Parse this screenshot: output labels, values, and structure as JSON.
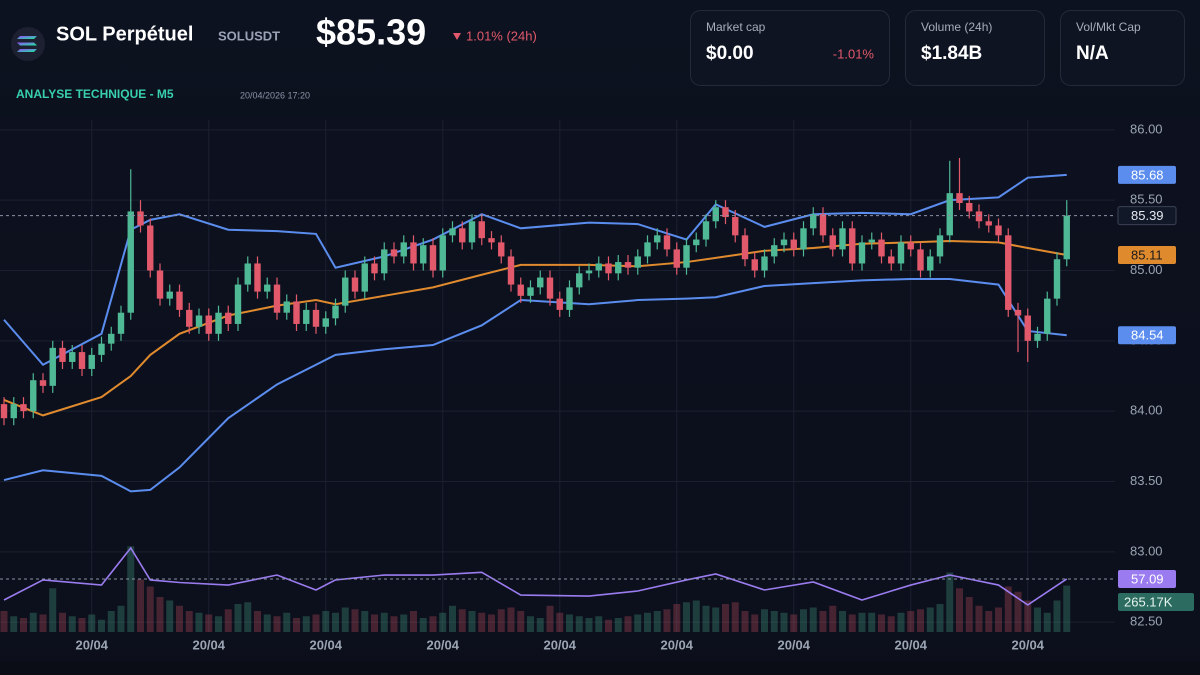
{
  "header": {
    "symbol": "SOL Perpétuel",
    "ticker": "SOLUSDT",
    "price": "$85.39",
    "change": "1.01% (24h)",
    "section": "ANALYSE TECHNIQUE - M5",
    "timestamp": "20/04/2026 17:20"
  },
  "stats": [
    {
      "label": "Market cap",
      "value": "$0.00",
      "change": "-1.01%"
    },
    {
      "label": "Volume (24h)",
      "value": "$1.84B"
    },
    {
      "label": "Vol/Mkt Cap",
      "value": "N/A"
    }
  ],
  "chart_data": {
    "type": "candlestick",
    "up_color": "#4fb894",
    "down_color": "#e2596b",
    "ylim": [
      82.43,
      86.07
    ],
    "yticks": [
      {
        "value": 82.5,
        "label": "82.50"
      },
      {
        "value": 83,
        "label": "83.00"
      },
      {
        "value": 83.5,
        "label": "83.50"
      },
      {
        "value": 84,
        "label": "84.00"
      },
      {
        "value": 84.5,
        "label": "84.50"
      },
      {
        "value": 85,
        "label": "85.00"
      },
      {
        "value": 85.5,
        "label": "85.50"
      },
      {
        "value": 86,
        "label": "86.00"
      }
    ],
    "categories": [
      null,
      null,
      null,
      null,
      null,
      null,
      null,
      null,
      null,
      "20/04",
      null,
      null,
      null,
      null,
      null,
      null,
      null,
      null,
      null,
      null,
      null,
      "20/04",
      null,
      null,
      null,
      null,
      null,
      null,
      null,
      null,
      null,
      null,
      null,
      "20/04",
      null,
      null,
      null,
      null,
      null,
      null,
      null,
      null,
      null,
      null,
      null,
      "20/04",
      null,
      null,
      null,
      null,
      null,
      null,
      null,
      null,
      null,
      null,
      null,
      "20/04",
      null,
      null,
      null,
      null,
      null,
      null,
      null,
      null,
      null,
      null,
      null,
      "20/04",
      null,
      null,
      null,
      null,
      null,
      null,
      null,
      null,
      null,
      null,
      null,
      "20/04",
      null,
      null,
      null,
      null,
      null,
      null,
      null,
      null,
      null,
      null,
      null,
      "20/04",
      null,
      null,
      null,
      null,
      null,
      null,
      null,
      null,
      null,
      null,
      null,
      "20/04",
      null,
      null,
      null,
      null
    ],
    "open": [
      84.05,
      83.95,
      84.05,
      84.0,
      84.22,
      84.18,
      84.45,
      84.35,
      84.42,
      84.3,
      84.4,
      84.48,
      84.55,
      84.7,
      85.42,
      85.32,
      85.0,
      84.8,
      84.85,
      84.72,
      84.6,
      84.68,
      84.55,
      84.7,
      84.62,
      84.9,
      85.05,
      84.85,
      84.9,
      84.7,
      84.78,
      84.62,
      84.72,
      84.6,
      84.66,
      84.75,
      84.95,
      84.85,
      85.05,
      84.98,
      85.15,
      85.1,
      85.2,
      85.05,
      85.18,
      85.0,
      85.25,
      85.3,
      85.2,
      85.35,
      85.23,
      85.2,
      85.1,
      84.9,
      84.82,
      84.88,
      84.95,
      84.8,
      84.72,
      84.88,
      84.98,
      85.0,
      85.05,
      84.98,
      85.06,
      85.02,
      85.1,
      85.2,
      85.25,
      85.15,
      85.02,
      85.18,
      85.22,
      85.35,
      85.45,
      85.38,
      85.25,
      85.08,
      85.0,
      85.1,
      85.18,
      85.22,
      85.15,
      85.3,
      85.4,
      85.25,
      85.15,
      85.3,
      85.05,
      85.2,
      85.22,
      85.1,
      85.05,
      85.2,
      85.15,
      85.0,
      85.1,
      85.25,
      85.55,
      85.48,
      85.42,
      85.35,
      85.32,
      85.25,
      84.72,
      84.68,
      84.5,
      84.55,
      84.8,
      85.08
    ],
    "high": [
      84.1,
      84.1,
      84.1,
      84.27,
      84.27,
      84.5,
      84.5,
      84.47,
      84.47,
      84.45,
      84.53,
      84.6,
      84.75,
      85.72,
      85.5,
      85.37,
      85.05,
      84.9,
      84.9,
      84.77,
      84.73,
      84.73,
      84.75,
      84.75,
      84.95,
      85.1,
      85.1,
      84.95,
      84.95,
      84.83,
      84.83,
      84.77,
      84.77,
      84.71,
      84.8,
      85.0,
      85.0,
      85.1,
      85.1,
      85.2,
      85.2,
      85.25,
      85.25,
      85.23,
      85.23,
      85.3,
      85.35,
      85.35,
      85.4,
      85.4,
      85.28,
      85.25,
      85.15,
      84.95,
      84.93,
      85.0,
      85.0,
      84.85,
      84.93,
      85.03,
      85.05,
      85.1,
      85.1,
      85.11,
      85.11,
      85.15,
      85.25,
      85.3,
      85.3,
      85.2,
      85.23,
      85.27,
      85.4,
      85.5,
      85.5,
      85.43,
      85.3,
      85.13,
      85.15,
      85.23,
      85.27,
      85.27,
      85.35,
      85.45,
      85.45,
      85.3,
      85.35,
      85.35,
      85.25,
      85.27,
      85.27,
      85.15,
      85.25,
      85.25,
      85.2,
      85.15,
      85.3,
      85.78,
      85.8,
      85.53,
      85.47,
      85.4,
      85.37,
      85.3,
      84.77,
      84.73,
      84.6,
      84.85,
      85.13,
      85.5
    ],
    "low": [
      83.9,
      83.9,
      83.95,
      83.95,
      84.13,
      84.13,
      84.3,
      84.3,
      84.25,
      84.25,
      84.35,
      84.43,
      84.5,
      84.65,
      85.27,
      84.95,
      84.75,
      84.75,
      84.67,
      84.55,
      84.55,
      84.5,
      84.5,
      84.57,
      84.57,
      84.85,
      84.8,
      84.8,
      84.65,
      84.65,
      84.57,
      84.57,
      84.55,
      84.55,
      84.61,
      84.7,
      84.8,
      84.8,
      84.93,
      84.93,
      85.05,
      85.05,
      85.0,
      85.0,
      84.95,
      84.95,
      85.2,
      85.15,
      85.15,
      85.18,
      85.15,
      85.05,
      84.85,
      84.77,
      84.77,
      84.83,
      84.75,
      84.67,
      84.67,
      84.83,
      84.93,
      84.95,
      84.93,
      84.93,
      84.97,
      84.97,
      85.05,
      85.15,
      85.1,
      84.97,
      84.97,
      85.13,
      85.17,
      85.3,
      85.33,
      85.2,
      85.03,
      84.95,
      84.95,
      85.05,
      85.13,
      85.1,
      85.1,
      85.25,
      85.2,
      85.1,
      85.1,
      85.0,
      85.0,
      85.15,
      85.05,
      85.0,
      85.0,
      85.1,
      84.95,
      84.95,
      85.05,
      85.2,
      85.43,
      85.37,
      85.3,
      85.27,
      85.2,
      84.67,
      84.42,
      84.35,
      84.45,
      84.5,
      84.75,
      85.03
    ],
    "close": [
      83.95,
      84.05,
      84.0,
      84.22,
      84.18,
      84.45,
      84.35,
      84.42,
      84.3,
      84.4,
      84.48,
      84.55,
      84.7,
      85.42,
      85.32,
      85.0,
      84.8,
      84.85,
      84.72,
      84.6,
      84.68,
      84.55,
      84.7,
      84.62,
      84.9,
      85.05,
      84.85,
      84.9,
      84.7,
      84.78,
      84.62,
      84.72,
      84.6,
      84.66,
      84.75,
      84.95,
      84.85,
      85.05,
      84.98,
      85.15,
      85.1,
      85.2,
      85.05,
      85.18,
      85.0,
      85.25,
      85.3,
      85.2,
      85.35,
      85.23,
      85.2,
      85.1,
      84.9,
      84.82,
      84.88,
      84.95,
      84.8,
      84.72,
      84.88,
      84.98,
      85.0,
      85.05,
      84.98,
      85.06,
      85.02,
      85.1,
      85.2,
      85.25,
      85.15,
      85.02,
      85.18,
      85.22,
      85.35,
      85.45,
      85.38,
      85.25,
      85.08,
      85.0,
      85.1,
      85.18,
      85.22,
      85.15,
      85.3,
      85.4,
      85.25,
      85.15,
      85.3,
      85.05,
      85.2,
      85.22,
      85.1,
      85.05,
      85.2,
      85.15,
      85.0,
      85.1,
      85.25,
      85.55,
      85.48,
      85.42,
      85.35,
      85.32,
      85.25,
      84.72,
      84.68,
      84.5,
      84.55,
      84.8,
      85.08,
      85.39
    ],
    "bands": [
      {
        "color": "#5b8def",
        "x": [
          0,
          4,
          10,
          13,
          15,
          18,
          23,
          28,
          32,
          34,
          39,
          44,
          49,
          53,
          60,
          65,
          70,
          73,
          78,
          83,
          88,
          93,
          97,
          102,
          105,
          109
        ],
        "values": [
          84.65,
          84.33,
          84.55,
          85.29,
          85.36,
          85.4,
          85.29,
          85.28,
          85.26,
          85.02,
          85.1,
          85.22,
          85.4,
          85.3,
          85.34,
          85.33,
          85.22,
          85.47,
          85.31,
          85.4,
          85.41,
          85.4,
          85.5,
          85.52,
          85.66,
          85.68
        ]
      },
      {
        "color": "#e08a2e",
        "x": [
          0,
          4,
          10,
          13,
          15,
          18,
          23,
          28,
          32,
          34,
          39,
          44,
          49,
          53,
          60,
          65,
          70,
          73,
          78,
          83,
          88,
          93,
          97,
          102,
          105,
          109
        ],
        "values": [
          84.08,
          83.97,
          84.1,
          84.25,
          84.4,
          84.55,
          84.68,
          84.75,
          84.79,
          84.76,
          84.82,
          84.88,
          84.97,
          85.04,
          85.04,
          85.03,
          85.06,
          85.09,
          85.14,
          85.16,
          85.19,
          85.2,
          85.21,
          85.2,
          85.16,
          85.11
        ]
      },
      {
        "color": "#5b8def",
        "x": [
          0,
          4,
          10,
          13,
          15,
          18,
          23,
          28,
          32,
          34,
          39,
          44,
          49,
          53,
          60,
          65,
          70,
          73,
          78,
          83,
          88,
          93,
          97,
          102,
          105,
          109
        ],
        "values": [
          83.51,
          83.58,
          83.54,
          83.43,
          83.44,
          83.6,
          83.95,
          84.19,
          84.33,
          84.4,
          84.44,
          84.47,
          84.61,
          84.79,
          84.76,
          84.79,
          84.8,
          84.81,
          84.89,
          84.91,
          84.93,
          84.94,
          84.94,
          84.9,
          84.57,
          84.54
        ]
      }
    ],
    "rsi": {
      "color": "#9b7cf0",
      "ylim": [
        30,
        80
      ],
      "x": [
        0,
        4,
        10,
        13,
        15,
        18,
        23,
        28,
        32,
        34,
        39,
        44,
        49,
        53,
        60,
        65,
        70,
        73,
        78,
        83,
        88,
        93,
        97,
        102,
        105,
        109
      ],
      "values": [
        44.7,
        56.5,
        53.5,
        75.3,
        56.5,
        55,
        53.5,
        59.4,
        50.6,
        56.5,
        59.4,
        59.4,
        61,
        47.6,
        47,
        50,
        56.5,
        60,
        50.6,
        55.3,
        44.7,
        53.5,
        59.4,
        53.5,
        41.8,
        57.09
      ]
    },
    "volume": {
      "ylim": [
        0,
        600
      ],
      "last_label": "265.17K",
      "values": [
        120,
        90,
        80,
        110,
        100,
        250,
        110,
        90,
        80,
        100,
        70,
        120,
        150,
        490,
        300,
        260,
        200,
        180,
        150,
        120,
        110,
        100,
        90,
        130,
        160,
        170,
        120,
        100,
        90,
        110,
        80,
        90,
        100,
        120,
        110,
        140,
        130,
        120,
        100,
        110,
        90,
        100,
        120,
        80,
        90,
        110,
        150,
        130,
        120,
        110,
        100,
        130,
        140,
        120,
        90,
        80,
        150,
        110,
        100,
        90,
        80,
        90,
        70,
        80,
        90,
        100,
        110,
        120,
        130,
        160,
        170,
        180,
        150,
        140,
        160,
        170,
        120,
        100,
        130,
        120,
        110,
        100,
        130,
        140,
        120,
        150,
        120,
        100,
        110,
        110,
        100,
        90,
        110,
        120,
        130,
        140,
        160,
        340,
        250,
        200,
        150,
        120,
        140,
        260,
        230,
        180,
        140,
        110,
        180,
        265.17
      ]
    }
  }
}
